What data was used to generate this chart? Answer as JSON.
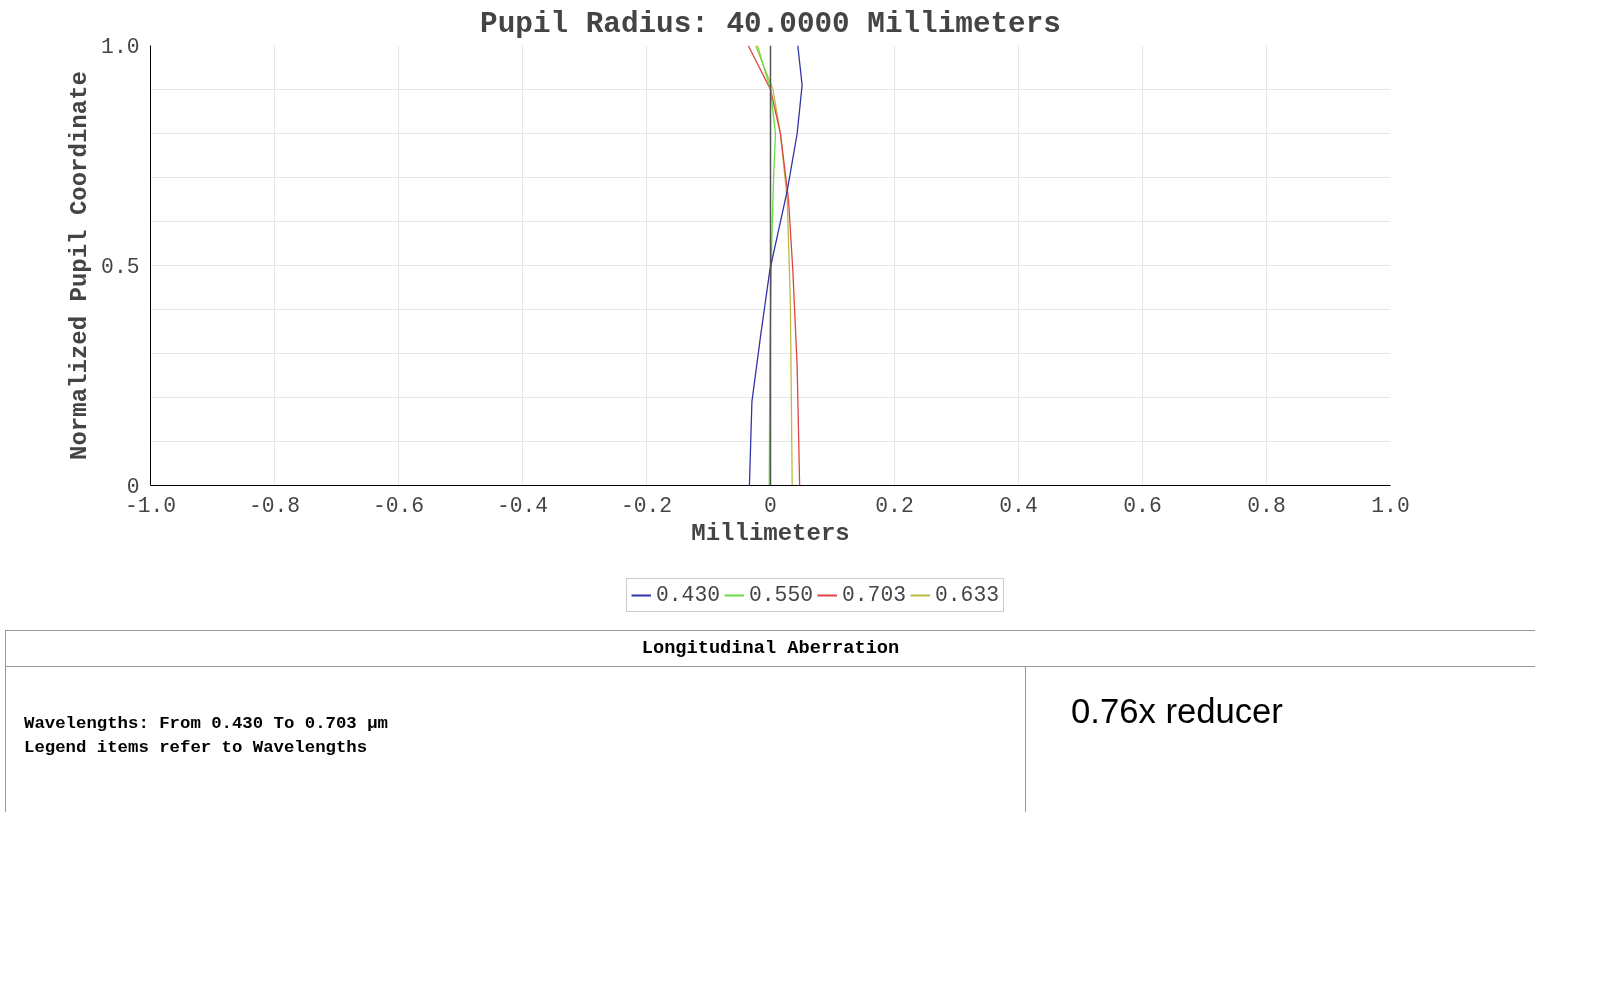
{
  "chart_data": {
    "type": "line",
    "title": "Pupil Radius: 40.0000 Millimeters",
    "xlabel": "Millimeters",
    "ylabel": "Normalized Pupil Coordinate",
    "xlim": [
      -1,
      1
    ],
    "ylim": [
      0,
      1
    ],
    "xticks": [
      {
        "value": -1,
        "label": "-1.0"
      },
      -0.8,
      -0.6,
      -0.4,
      -0.2,
      0,
      0.2,
      0.4,
      0.6,
      0.8,
      {
        "value": 1,
        "label": "1.0"
      }
    ],
    "yticks": [
      0,
      {
        "value": 0.1,
        "label": null
      },
      {
        "value": 0.2,
        "label": null
      },
      {
        "value": 0.3,
        "label": null
      },
      {
        "value": 0.4,
        "label": null
      },
      0.5,
      {
        "value": 0.6,
        "label": null
      },
      {
        "value": 0.7,
        "label": null
      },
      {
        "value": 0.8,
        "label": null
      },
      {
        "value": 0.9,
        "label": null
      },
      {
        "value": 1,
        "label": "1.0"
      }
    ],
    "grid": true,
    "legend": "bottom",
    "line_style": "solid",
    "ref_lines": [
      {
        "axis": "x",
        "value": 0,
        "color": "#555555"
      }
    ],
    "series": [
      {
        "name": "0.430",
        "color": "#3333aa",
        "x": [
          -0.034,
          -0.03,
          -0.016,
          -0.001,
          0.027,
          0.043,
          0.051,
          0.044
        ],
        "values": [
          0,
          0.19,
          0.34,
          0.49,
          0.67,
          0.8,
          0.91,
          1.0
        ]
      },
      {
        "name": "0.550",
        "color": "#66dd44",
        "x": [
          -0.002,
          -0.001,
          0.002,
          0.005,
          0.008,
          0.0,
          -0.021
        ],
        "values": [
          0,
          0.3,
          0.55,
          0.7,
          0.8,
          0.9,
          1.0
        ]
      },
      {
        "name": "0.703",
        "color": "#dd4444",
        "x": [
          0.047,
          0.043,
          0.036,
          0.029,
          0.016,
          0.0,
          -0.036
        ],
        "values": [
          0,
          0.27,
          0.49,
          0.65,
          0.8,
          0.9,
          1.0
        ]
      },
      {
        "name": "0.633",
        "color": "#bbbb44",
        "x": [
          0.035,
          0.032,
          0.027,
          0.016,
          0.004,
          -0.024
        ],
        "values": [
          0,
          0.42,
          0.65,
          0.8,
          0.9,
          1.0
        ]
      }
    ],
    "annotations": [
      "Longitudinal Aberration",
      "Wavelengths: From 0.430 To 0.703 µm",
      "Legend items refer to Wavelengths",
      "0.76x reducer"
    ]
  }
}
